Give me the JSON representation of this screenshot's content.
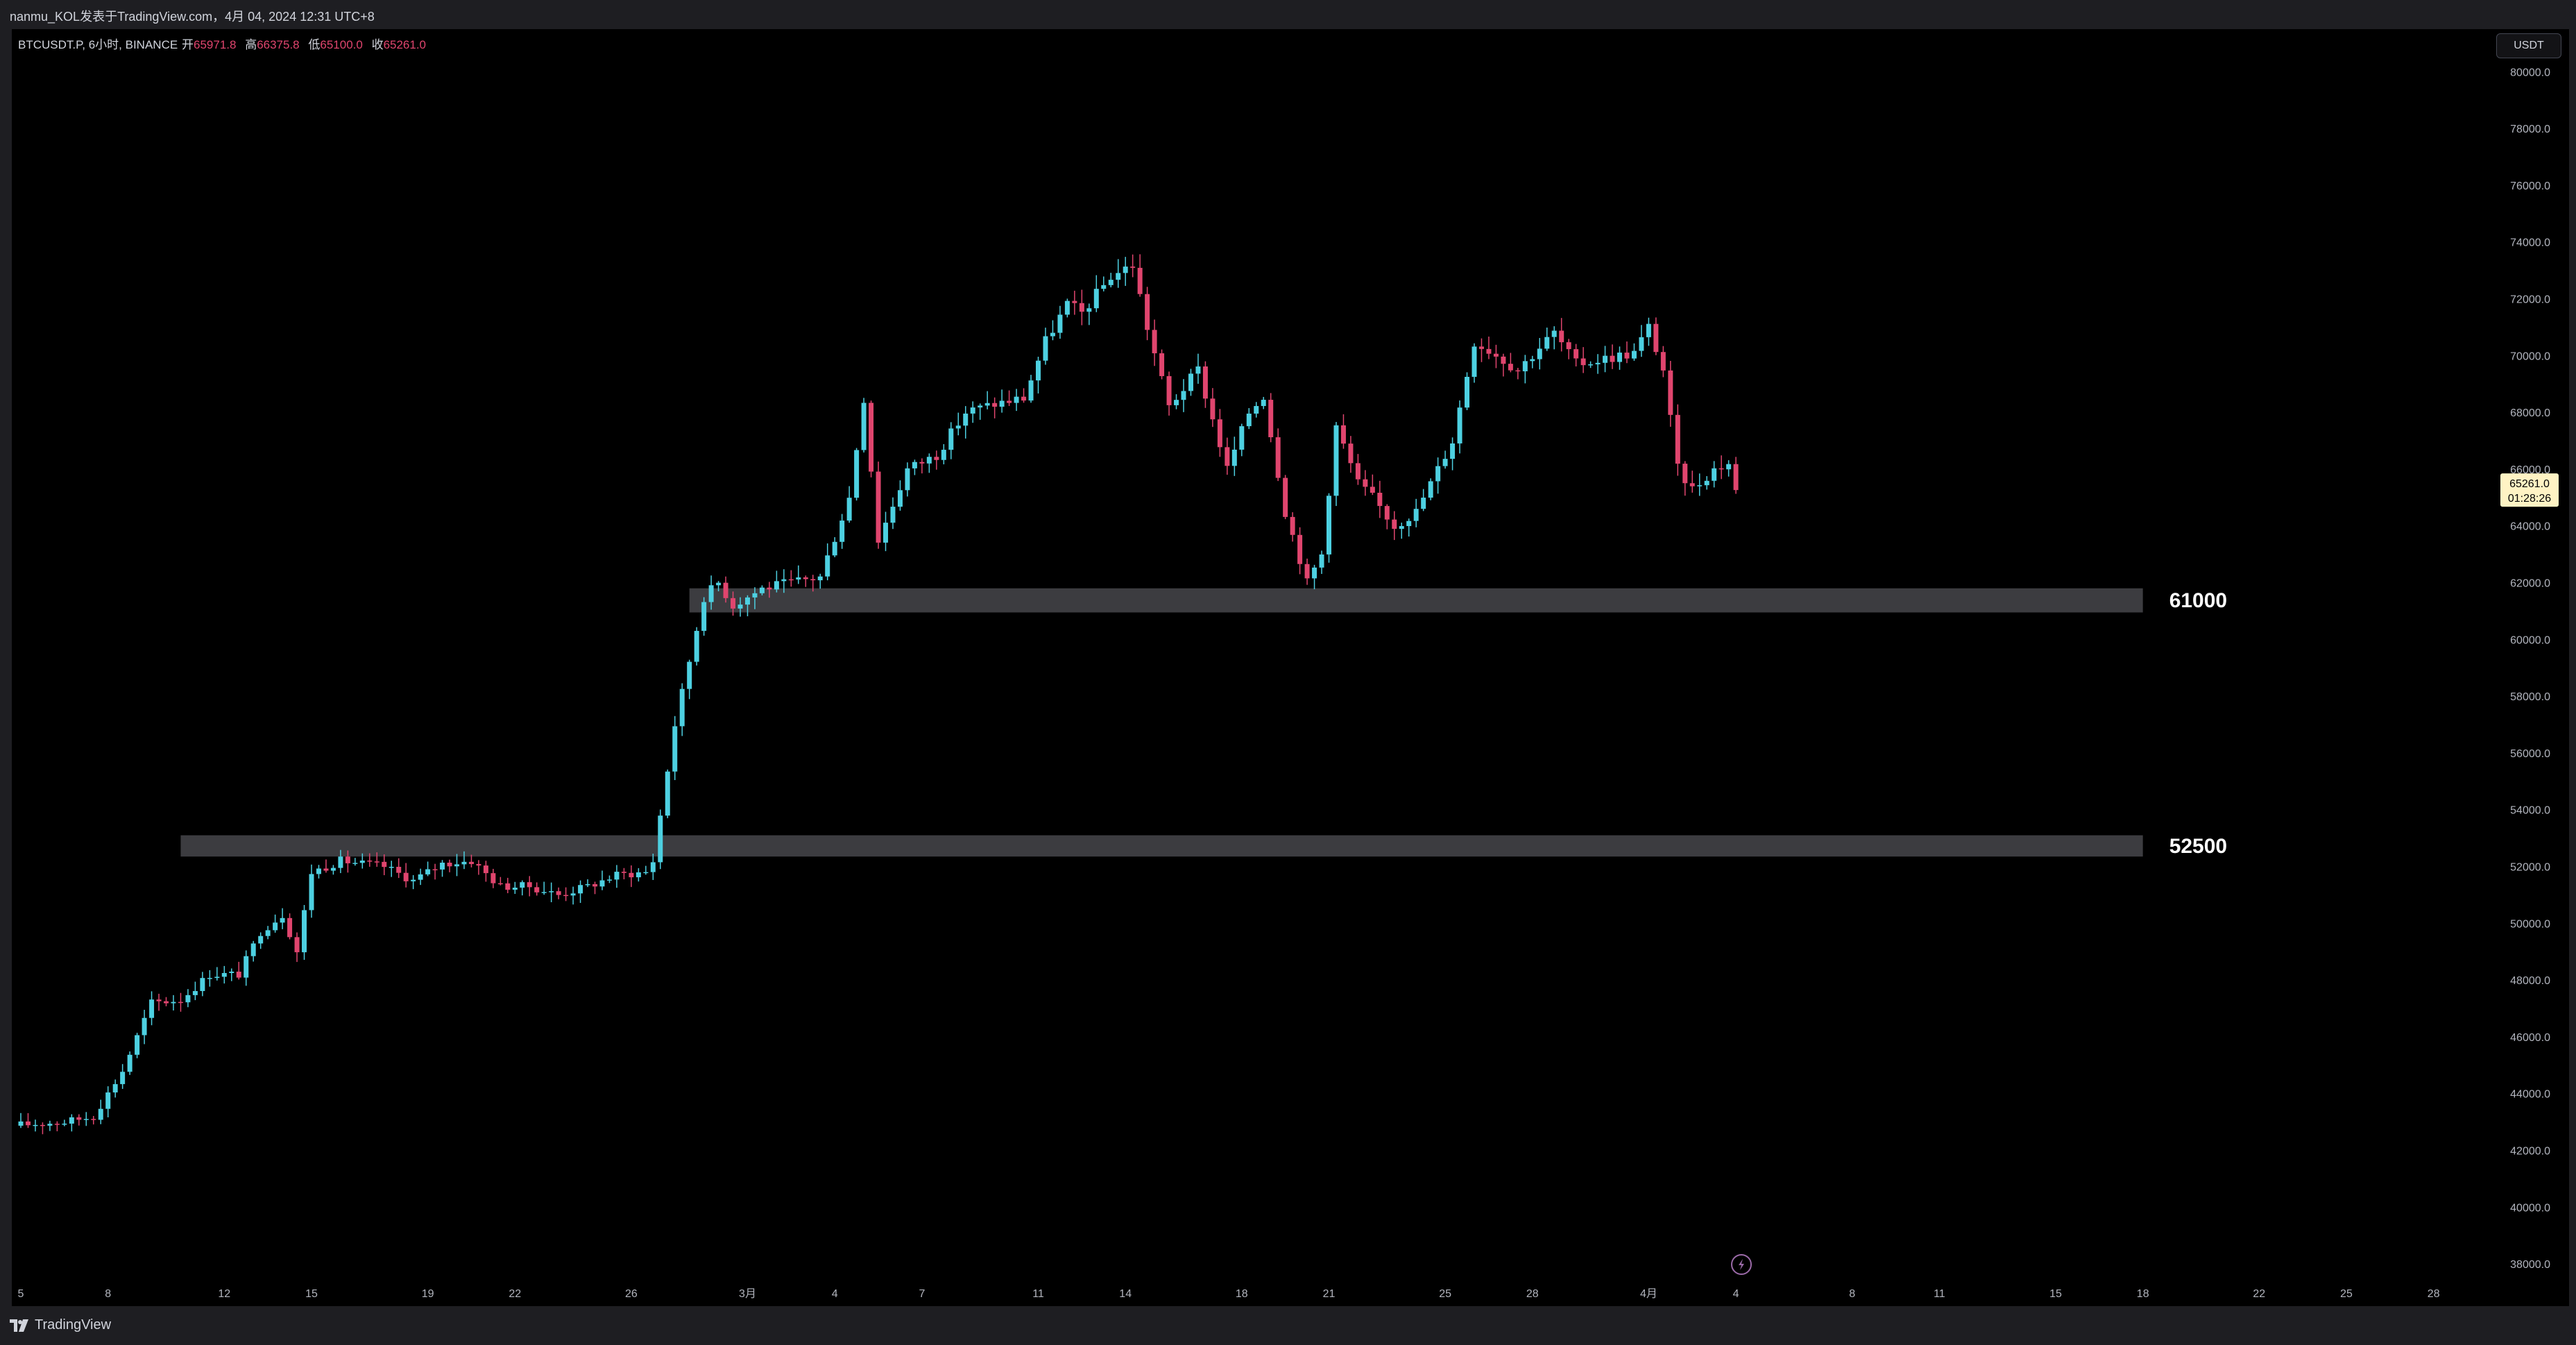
{
  "header": {
    "title": "nanmu_KOL发表于TradingView.com，4月 04, 2024 12:31 UTC+8"
  },
  "legend": {
    "symbol": "BTCUSDT.P, 6小时, BINANCE",
    "open_label": "开",
    "open": "65971.8",
    "high_label": "高",
    "high": "66375.8",
    "low_label": "低",
    "low": "65100.0",
    "close_label": "收",
    "close": "65261.0"
  },
  "currency_button": "USDT",
  "price_tag": {
    "price": "65261.0",
    "countdown": "01:28:26"
  },
  "footer": {
    "brand": "TradingView"
  },
  "colors": {
    "up": "#4dd0e1",
    "down": "#e0456e",
    "zone": "#3c3c40",
    "axis_text": "#b2b5be",
    "price_tag_bg": "#fff3c4"
  },
  "chart_data": {
    "type": "candlestick",
    "title": "",
    "xlabel": "",
    "ylabel": "",
    "ylim": [
      37000,
      81500
    ],
    "y_ticks": [
      "38000.0",
      "40000.0",
      "42000.0",
      "44000.0",
      "46000.0",
      "48000.0",
      "50000.0",
      "52000.0",
      "54000.0",
      "56000.0",
      "58000.0",
      "60000.0",
      "62000.0",
      "64000.0",
      "66000.0",
      "68000.0",
      "70000.0",
      "72000.0",
      "74000.0",
      "76000.0",
      "78000.0",
      "80000.0"
    ],
    "x_ticks": [
      {
        "label": "5",
        "date": "2024-02-05"
      },
      {
        "label": "8",
        "date": "2024-02-08"
      },
      {
        "label": "12",
        "date": "2024-02-12"
      },
      {
        "label": "15",
        "date": "2024-02-15"
      },
      {
        "label": "19",
        "date": "2024-02-19"
      },
      {
        "label": "22",
        "date": "2024-02-22"
      },
      {
        "label": "26",
        "date": "2024-02-26"
      },
      {
        "label": "3月",
        "date": "2024-03-01"
      },
      {
        "label": "4",
        "date": "2024-03-04"
      },
      {
        "label": "7",
        "date": "2024-03-07"
      },
      {
        "label": "11",
        "date": "2024-03-11"
      },
      {
        "label": "14",
        "date": "2024-03-14"
      },
      {
        "label": "18",
        "date": "2024-03-18"
      },
      {
        "label": "21",
        "date": "2024-03-21"
      },
      {
        "label": "25",
        "date": "2024-03-25"
      },
      {
        "label": "28",
        "date": "2024-03-28"
      },
      {
        "label": "4月",
        "date": "2024-04-01"
      },
      {
        "label": "4",
        "date": "2024-04-04"
      },
      {
        "label": "8",
        "date": "2024-04-08"
      },
      {
        "label": "11",
        "date": "2024-04-11"
      },
      {
        "label": "15",
        "date": "2024-04-15"
      },
      {
        "label": "18",
        "date": "2024-04-18"
      },
      {
        "label": "22",
        "date": "2024-04-22"
      },
      {
        "label": "25",
        "date": "2024-04-25"
      },
      {
        "label": "28",
        "date": "2024-04-28"
      }
    ],
    "interval": "6小时",
    "first_candle": "2024-02-05T00:00",
    "close_path": [
      [
        "2024-02-05T00:00",
        42900
      ],
      [
        "2024-02-06T12:00",
        43000
      ],
      [
        "2024-02-07T12:00",
        43200
      ],
      [
        "2024-02-08T12:00",
        44800
      ],
      [
        "2024-02-09T12:00",
        47200
      ],
      [
        "2024-02-10T12:00",
        47300
      ],
      [
        "2024-02-11T12:00",
        48200
      ],
      [
        "2024-02-12T12:00",
        48200
      ],
      [
        "2024-02-13T06:00",
        49700
      ],
      [
        "2024-02-14T00:00",
        50300
      ],
      [
        "2024-02-14T12:00",
        49000
      ],
      [
        "2024-02-15T00:00",
        51800
      ],
      [
        "2024-02-16T00:00",
        52200
      ],
      [
        "2024-02-17T12:00",
        52000
      ],
      [
        "2024-02-18T12:00",
        51500
      ],
      [
        "2024-02-19T12:00",
        52100
      ],
      [
        "2024-02-20T12:00",
        52200
      ],
      [
        "2024-02-21T12:00",
        51300
      ],
      [
        "2024-02-22T12:00",
        51300
      ],
      [
        "2024-02-23T12:00",
        51000
      ],
      [
        "2024-02-24T12:00",
        51300
      ],
      [
        "2024-02-25T12:00",
        51700
      ],
      [
        "2024-02-26T12:00",
        51800
      ],
      [
        "2024-02-26T18:00",
        52200
      ],
      [
        "2024-02-27T12:00",
        57000
      ],
      [
        "2024-02-28T12:00",
        61500
      ],
      [
        "2024-02-29T00:00",
        62000
      ],
      [
        "2024-02-29T12:00",
        61200
      ],
      [
        "2024-03-01T12:00",
        61800
      ],
      [
        "2024-03-02T12:00",
        62000
      ],
      [
        "2024-03-03T12:00",
        62200
      ],
      [
        "2024-03-04T12:00",
        65000
      ],
      [
        "2024-03-05T00:00",
        68500
      ],
      [
        "2024-03-05T12:00",
        63500
      ],
      [
        "2024-03-06T12:00",
        66000
      ],
      [
        "2024-03-07T12:00",
        66500
      ],
      [
        "2024-03-08T12:00",
        68000
      ],
      [
        "2024-03-09T12:00",
        68300
      ],
      [
        "2024-03-10T12:00",
        68500
      ],
      [
        "2024-03-11T06:00",
        70500
      ],
      [
        "2024-03-12T00:00",
        71800
      ],
      [
        "2024-03-12T12:00",
        71500
      ],
      [
        "2024-03-13T12:00",
        72800
      ],
      [
        "2024-03-14T06:00",
        73200
      ],
      [
        "2024-03-14T18:00",
        71000
      ],
      [
        "2024-03-15T12:00",
        68200
      ],
      [
        "2024-03-16T12:00",
        69500
      ],
      [
        "2024-03-17T12:00",
        66000
      ],
      [
        "2024-03-18T06:00",
        68000
      ],
      [
        "2024-03-18T18:00",
        68600
      ],
      [
        "2024-03-19T12:00",
        64500
      ],
      [
        "2024-03-20T06:00",
        62000
      ],
      [
        "2024-03-20T18:00",
        63000
      ],
      [
        "2024-03-21T06:00",
        67500
      ],
      [
        "2024-03-22T00:00",
        65500
      ],
      [
        "2024-03-22T12:00",
        65000
      ],
      [
        "2024-03-23T06:00",
        64000
      ],
      [
        "2024-03-24T00:00",
        64500
      ],
      [
        "2024-03-24T12:00",
        65500
      ],
      [
        "2024-03-25T06:00",
        67000
      ],
      [
        "2024-03-26T00:00",
        70500
      ],
      [
        "2024-03-26T12:00",
        70200
      ],
      [
        "2024-03-27T12:00",
        69500
      ],
      [
        "2024-03-28T06:00",
        70300
      ],
      [
        "2024-03-28T18:00",
        70800
      ],
      [
        "2024-03-29T12:00",
        69700
      ],
      [
        "2024-03-30T12:00",
        69900
      ],
      [
        "2024-03-31T12:00",
        70100
      ],
      [
        "2024-04-01T00:00",
        71000
      ],
      [
        "2024-04-01T12:00",
        69500
      ],
      [
        "2024-04-02T00:00",
        66000
      ],
      [
        "2024-04-02T12:00",
        65300
      ],
      [
        "2024-04-03T06:00",
        66000
      ],
      [
        "2024-04-03T18:00",
        66200
      ],
      [
        "2024-04-04T00:00",
        65261
      ]
    ],
    "zones": [
      {
        "label": "61000",
        "from_date": "2024-02-28T00:00",
        "to_date": "2024-04-18T00:00",
        "low": 60950,
        "high": 61800
      },
      {
        "label": "52500",
        "from_date": "2024-02-10T12:00",
        "to_date": "2024-04-18T00:00",
        "low": 52350,
        "high": 53100
      }
    ],
    "last_price": 65261.0
  }
}
